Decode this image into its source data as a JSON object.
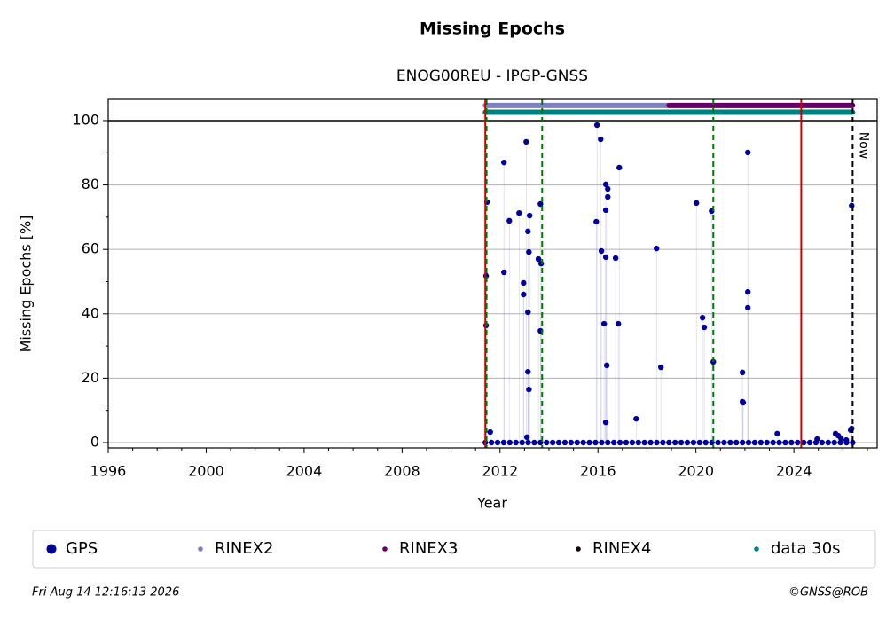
{
  "chart_data": {
    "type": "scatter",
    "title": "Missing Epochs",
    "subtitle": "ENOG00REU - IPGP-GNSS",
    "x_label": "Year",
    "y_label": "Missing Epochs [%]",
    "xlim": [
      1996,
      2027.4
    ],
    "ylim": [
      -1.65,
      106.6
    ],
    "xticks": [
      1996,
      2000,
      2004,
      2008,
      2012,
      2016,
      2020,
      2024
    ],
    "xminorticks": [
      1997,
      1998,
      1999,
      2001,
      2002,
      2003,
      2005,
      2006,
      2007,
      2009,
      2010,
      2011,
      2013,
      2014,
      2015,
      2017,
      2018,
      2019,
      2021,
      2022,
      2023,
      2025,
      2026,
      2027
    ],
    "yticks": [
      0,
      20,
      40,
      60,
      80,
      100
    ],
    "yminorticks": [
      10,
      30,
      50,
      70,
      90
    ],
    "grid": true,
    "legend": "bottom",
    "hlines": [
      {
        "y": 100,
        "color": "#000000"
      }
    ],
    "vlines": [
      {
        "x": 2011.4,
        "color": "#cc0000",
        "style": "solid"
      },
      {
        "x": 2011.45,
        "color": "#007700",
        "style": "dashed"
      },
      {
        "x": 2013.72,
        "color": "#007700",
        "style": "dashed"
      },
      {
        "x": 2020.71,
        "color": "#007700",
        "style": "dashed"
      },
      {
        "x": 2024.3,
        "color": "#cc0000",
        "style": "solid"
      },
      {
        "x": 2026.4,
        "color": "#000000",
        "style": "dashed",
        "label": "Now"
      }
    ],
    "series": [
      {
        "name": "GPS",
        "color": "#000099",
        "marker": "dot",
        "x": [
          2011.47,
          2011.43,
          2011.43,
          2011.6,
          2012.16,
          2012.16,
          2012.38,
          2012.78,
          2012.96,
          2012.96,
          2013.07,
          2013.1,
          2013.14,
          2013.18,
          2013.21,
          2013.14,
          2013.14,
          2013.18,
          2013.57,
          2013.68,
          2013.65,
          2013.65,
          2015.96,
          2016.11,
          2015.93,
          2016.14,
          2016.32,
          2016.32,
          2016.4,
          2016.4,
          2016.32,
          2016.25,
          2016.36,
          2016.32,
          2016.87,
          2016.72,
          2016.83,
          2017.56,
          2018.39,
          2018.57,
          2020.02,
          2020.27,
          2020.34,
          2020.64,
          2020.71,
          2021.9,
          2021.9,
          2021.93,
          2022.12,
          2022.12,
          2022.12,
          2023.32,
          2024.95,
          2025.7,
          2025.81,
          2025.92,
          2026.14,
          2026.32,
          2026.36,
          2026.36,
          2011.4,
          2011.65,
          2011.9,
          2012.15,
          2012.4,
          2012.65,
          2012.9,
          2013.15,
          2013.4,
          2013.65,
          2013.9,
          2014.15,
          2014.4,
          2014.65,
          2014.9,
          2015.15,
          2015.4,
          2015.65,
          2015.9,
          2016.15,
          2016.4,
          2016.65,
          2016.9,
          2017.15,
          2017.4,
          2017.65,
          2017.9,
          2018.15,
          2018.4,
          2018.65,
          2018.9,
          2019.15,
          2019.4,
          2019.65,
          2019.9,
          2020.15,
          2020.4,
          2020.65,
          2020.9,
          2021.15,
          2021.4,
          2021.65,
          2021.9,
          2022.15,
          2022.4,
          2022.65,
          2022.9,
          2023.15,
          2023.4,
          2023.65,
          2023.9,
          2024.15,
          2024.4,
          2024.65,
          2024.9,
          2025.15,
          2025.4,
          2025.65,
          2025.9,
          2026.15,
          2026.4
        ],
        "values": [
          74.7,
          51.8,
          36.4,
          3.3,
          87,
          52.9,
          68.9,
          71.3,
          49.6,
          46,
          93.4,
          1.7,
          65.6,
          59.2,
          70.5,
          40.5,
          22,
          16.5,
          57,
          55.6,
          74.1,
          34.7,
          98.6,
          94.2,
          68.6,
          59.5,
          57.6,
          80.2,
          78.8,
          76.3,
          72.2,
          36.9,
          24,
          6.3,
          85.4,
          57.3,
          36.9,
          7.4,
          60.3,
          23.4,
          74.4,
          38.8,
          35.8,
          71.9,
          25.1,
          21.8,
          12.7,
          12.4,
          90.1,
          46.8,
          41.9,
          2.8,
          1.1,
          2.8,
          2.2,
          1.4,
          0.8,
          3.9,
          4.4,
          73.6,
          0,
          0,
          0,
          0,
          0,
          0,
          0,
          0,
          0,
          0,
          0,
          0,
          0,
          0,
          0,
          0,
          0,
          0,
          0,
          0,
          0,
          0,
          0,
          0,
          0,
          0,
          0,
          0,
          0,
          0,
          0,
          0,
          0,
          0,
          0,
          0,
          0,
          0,
          0,
          0,
          0,
          0,
          0,
          0,
          0,
          0,
          0,
          0,
          0,
          0,
          0,
          0,
          0,
          0,
          0,
          0,
          0,
          0,
          0,
          0,
          0
        ]
      },
      {
        "name": "RINEX2",
        "color": "#8080c0",
        "marker": "span",
        "x": [
          2011.4,
          2018.9
        ],
        "values": [
          104.7,
          104.7
        ]
      },
      {
        "name": "RINEX3",
        "color": "#660066",
        "marker": "span",
        "x": [
          2018.9,
          2026.4
        ],
        "values": [
          104.7,
          104.7
        ]
      },
      {
        "name": "RINEX4",
        "color": "#1a0010",
        "marker": "span"
      },
      {
        "name": "data 30s",
        "color": "#008080",
        "marker": "span",
        "x": [
          2011.4,
          2026.4
        ],
        "values": [
          102.6,
          102.6
        ]
      }
    ]
  },
  "footer": {
    "date": "Fri Aug 14 12:16:13 2026",
    "credit": "©GNSS@ROB"
  }
}
